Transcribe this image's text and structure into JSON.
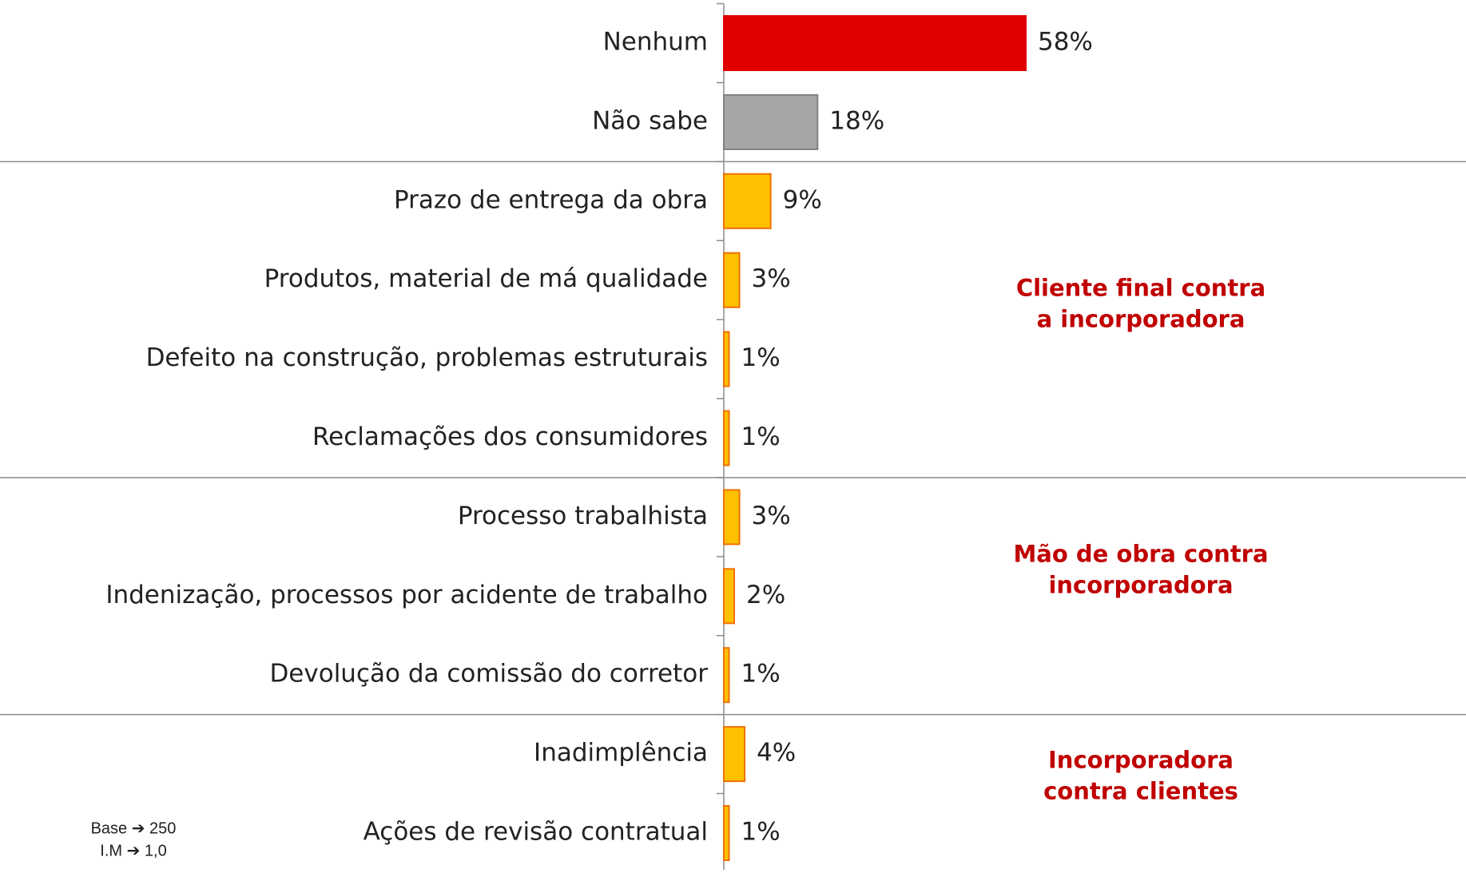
{
  "chart_data": {
    "type": "bar",
    "orientation": "horizontal",
    "categories": [
      "Nenhum",
      "Não sabe",
      "Prazo de entrega da obra",
      "Produtos, material de má qualidade",
      "Defeito na construção, problemas estruturais",
      "Reclamações dos consumidores",
      "Processo trabalhista",
      "Indenização, processos por acidente de trabalho",
      "Devolução da comissão do corretor",
      "Inadimplência",
      "Ações de revisão contratual"
    ],
    "values": [
      58,
      18,
      9,
      3,
      1,
      1,
      3,
      2,
      1,
      4,
      1
    ],
    "value_labels": [
      "58%",
      "18%",
      "9%",
      "3%",
      "1%",
      "1%",
      "3%",
      "2%",
      "1%",
      "4%",
      "1%"
    ],
    "colors": [
      "#e00000",
      "#a6a6a6",
      "#ffc000",
      "#ffc000",
      "#ffc000",
      "#ffc000",
      "#ffc000",
      "#ffc000",
      "#ffc000",
      "#ffc000",
      "#ffc000"
    ],
    "annotations": [
      {
        "lines": [
          "Cliente final contra",
          "a incorporadora"
        ]
      },
      {
        "lines": [
          "Mão de obra contra",
          "incorporadora"
        ]
      },
      {
        "lines": [
          "Incorporadora",
          "contra clientes"
        ]
      }
    ],
    "notes": [
      "Base ➔ 250",
      "I.M ➔ 1,0"
    ]
  }
}
